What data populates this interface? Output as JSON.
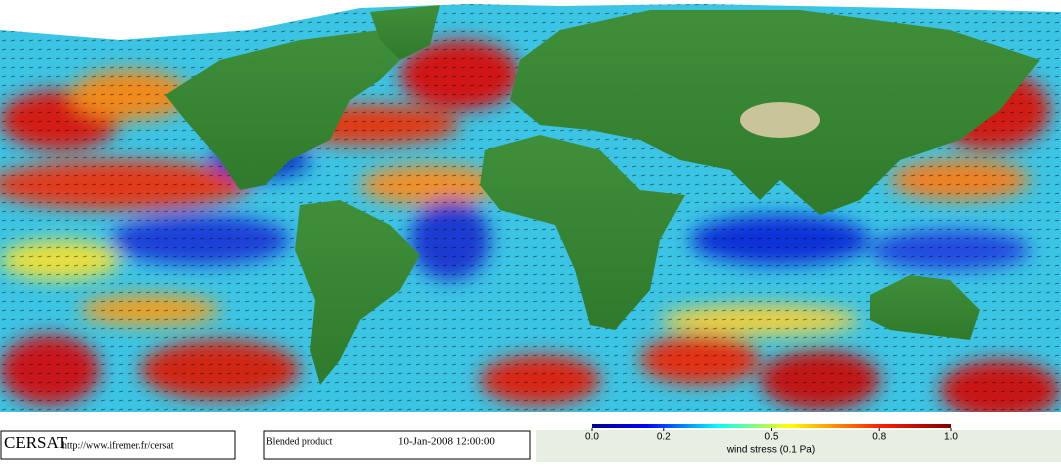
{
  "footer": {
    "logo": "CERSAT",
    "url": "http://www.ifremer.fr/cersat",
    "product": "Blended product",
    "date": "10-Jan-2008 12:00:00"
  },
  "colorbar": {
    "label": "wind stress (0.1 Pa)",
    "range": [
      0,
      1
    ],
    "ticks": [
      {
        "value": 0,
        "label": "0.0"
      },
      0.2,
      0.5,
      0.8,
      {
        "value": 1,
        "label": "1.0"
      }
    ]
  }
}
